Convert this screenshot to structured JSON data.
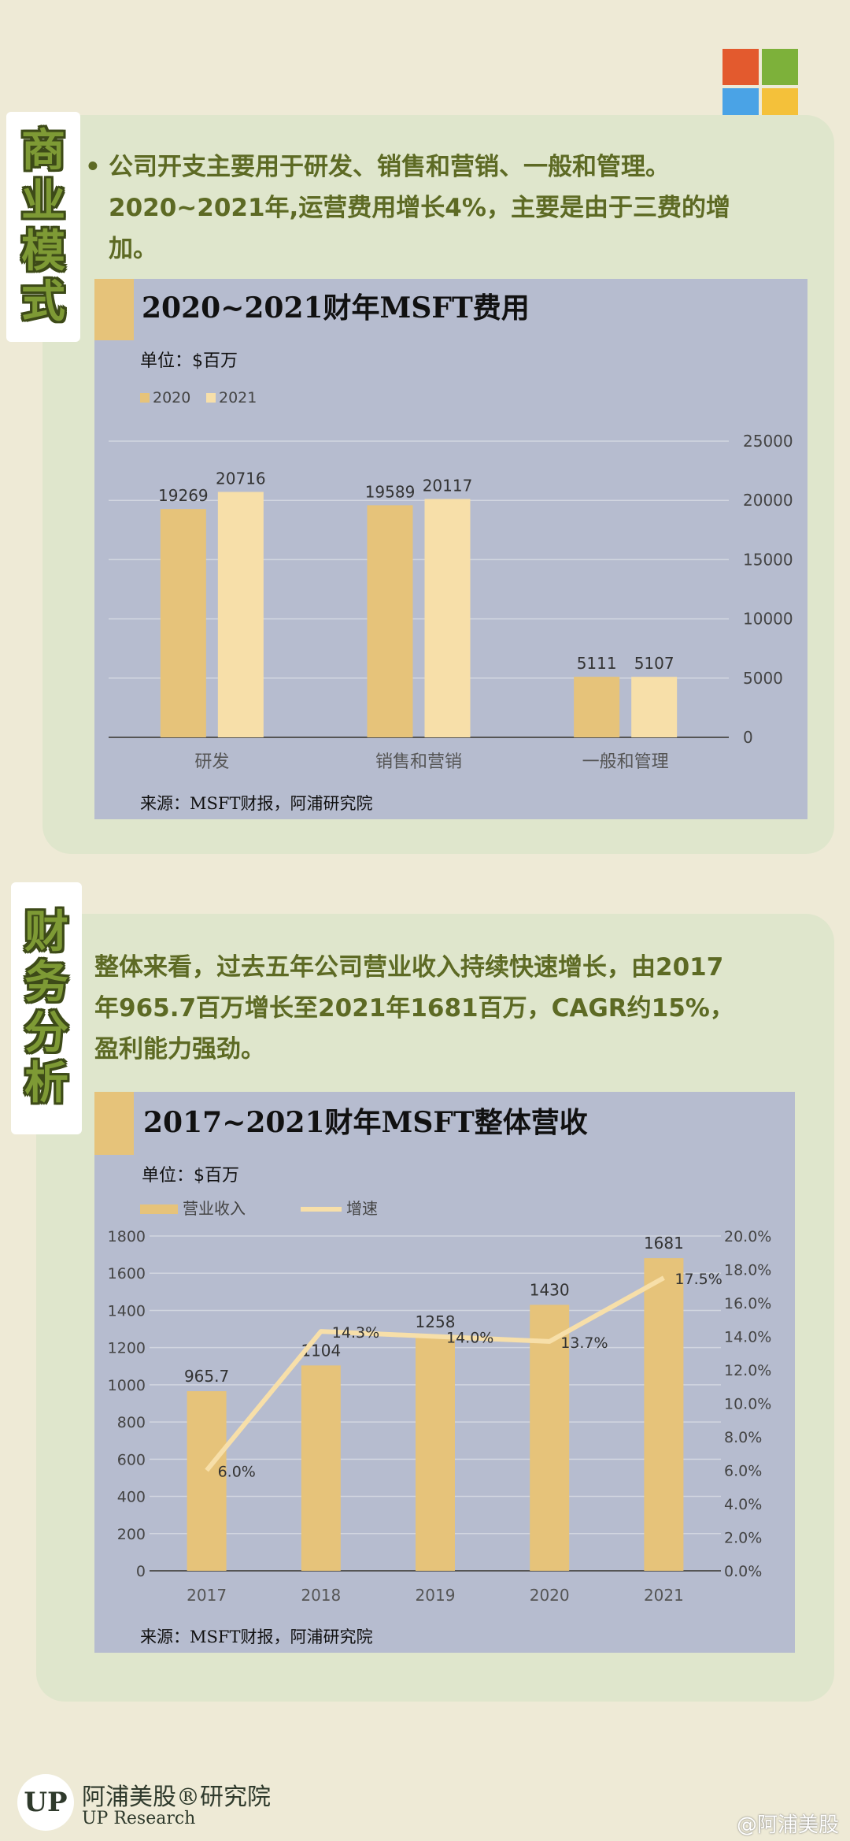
{
  "brand_logo_colors": [
    "#e35a2e",
    "#7db13a",
    "#4aa3e6",
    "#f4c13a"
  ],
  "section1": {
    "title_chars": [
      "商",
      "业",
      "模",
      "式"
    ],
    "bullet": "•",
    "paragraph_line1": "公司开支主要用于研发、销售和营销、一般和管理。",
    "paragraph_line2": "2020~2021年,运营费用增长4%，主要是由于三费的增",
    "paragraph_line3": "加。",
    "chart_title": "2020~2021财年MSFT费用",
    "unit": "单位：$百万",
    "source": "来源：MSFT财报，阿浦研究院"
  },
  "section2": {
    "title_chars": [
      "财",
      "务",
      "分",
      "析"
    ],
    "paragraph_line1": "整体来看，过去五年公司营业收入持续快速增长，由2017",
    "paragraph_line2": "年965.7百万增长至2021年1681百万，CAGR约15%，",
    "paragraph_line3": "盈利能力强劲。",
    "chart_title": "2017~2021财年MSFT整体营收",
    "unit": "单位：$百万",
    "source": "来源：MSFT财报，阿浦研究院"
  },
  "footer": {
    "logo_text": "UP",
    "brand_name": "阿浦美股®研究院",
    "brand_en": "UP Research",
    "watermark": "@阿浦美股"
  },
  "chart_data": [
    {
      "type": "bar",
      "title": "2020~2021财年MSFT费用",
      "categories": [
        "研发",
        "销售和营销",
        "一般和管理"
      ],
      "series": [
        {
          "name": "2020",
          "values": [
            19269,
            19589,
            5111
          ],
          "labels": [
            "19269",
            "19589",
            "5111"
          ],
          "color": "#e6c37a"
        },
        {
          "name": "2021",
          "values": [
            20716,
            20117,
            5107
          ],
          "labels": [
            "20716",
            "20117",
            "5107"
          ],
          "color": "#f7dfa9"
        }
      ],
      "ylim": [
        0,
        25000
      ],
      "yticks": [
        "0",
        "5000",
        "10000",
        "15000",
        "20000",
        "25000"
      ],
      "yaxis_side": "right",
      "legend": "top-left",
      "grid": true
    },
    {
      "type": "bar",
      "title": "2017~2021财年MSFT整体营收",
      "categories": [
        "2017",
        "2018",
        "2019",
        "2020",
        "2021"
      ],
      "series": [
        {
          "name": "营业收入",
          "type": "bar",
          "values": [
            965.7,
            1104,
            1258,
            1430,
            1681
          ],
          "labels": [
            "965.7",
            "1104",
            "1258",
            "1430",
            "1681"
          ],
          "color": "#e6c37a",
          "axis": "left"
        },
        {
          "name": "增速",
          "type": "line",
          "values": [
            6.0,
            14.3,
            14.0,
            13.7,
            17.5
          ],
          "labels": [
            "6.0%",
            "14.3%",
            "14.0%",
            "13.7%",
            "17.5%"
          ],
          "color": "#f7dfa9",
          "axis": "right"
        }
      ],
      "ylim": [
        0,
        1800
      ],
      "yticks": [
        "0",
        "200",
        "400",
        "600",
        "800",
        "1000",
        "1200",
        "1400",
        "1600",
        "1800"
      ],
      "y2lim": [
        0,
        20
      ],
      "y2ticks": [
        "0.0%",
        "2.0%",
        "4.0%",
        "6.0%",
        "8.0%",
        "10.0%",
        "12.0%",
        "14.0%",
        "16.0%",
        "18.0%",
        "20.0%"
      ],
      "legend": "top-left",
      "grid": true
    }
  ]
}
